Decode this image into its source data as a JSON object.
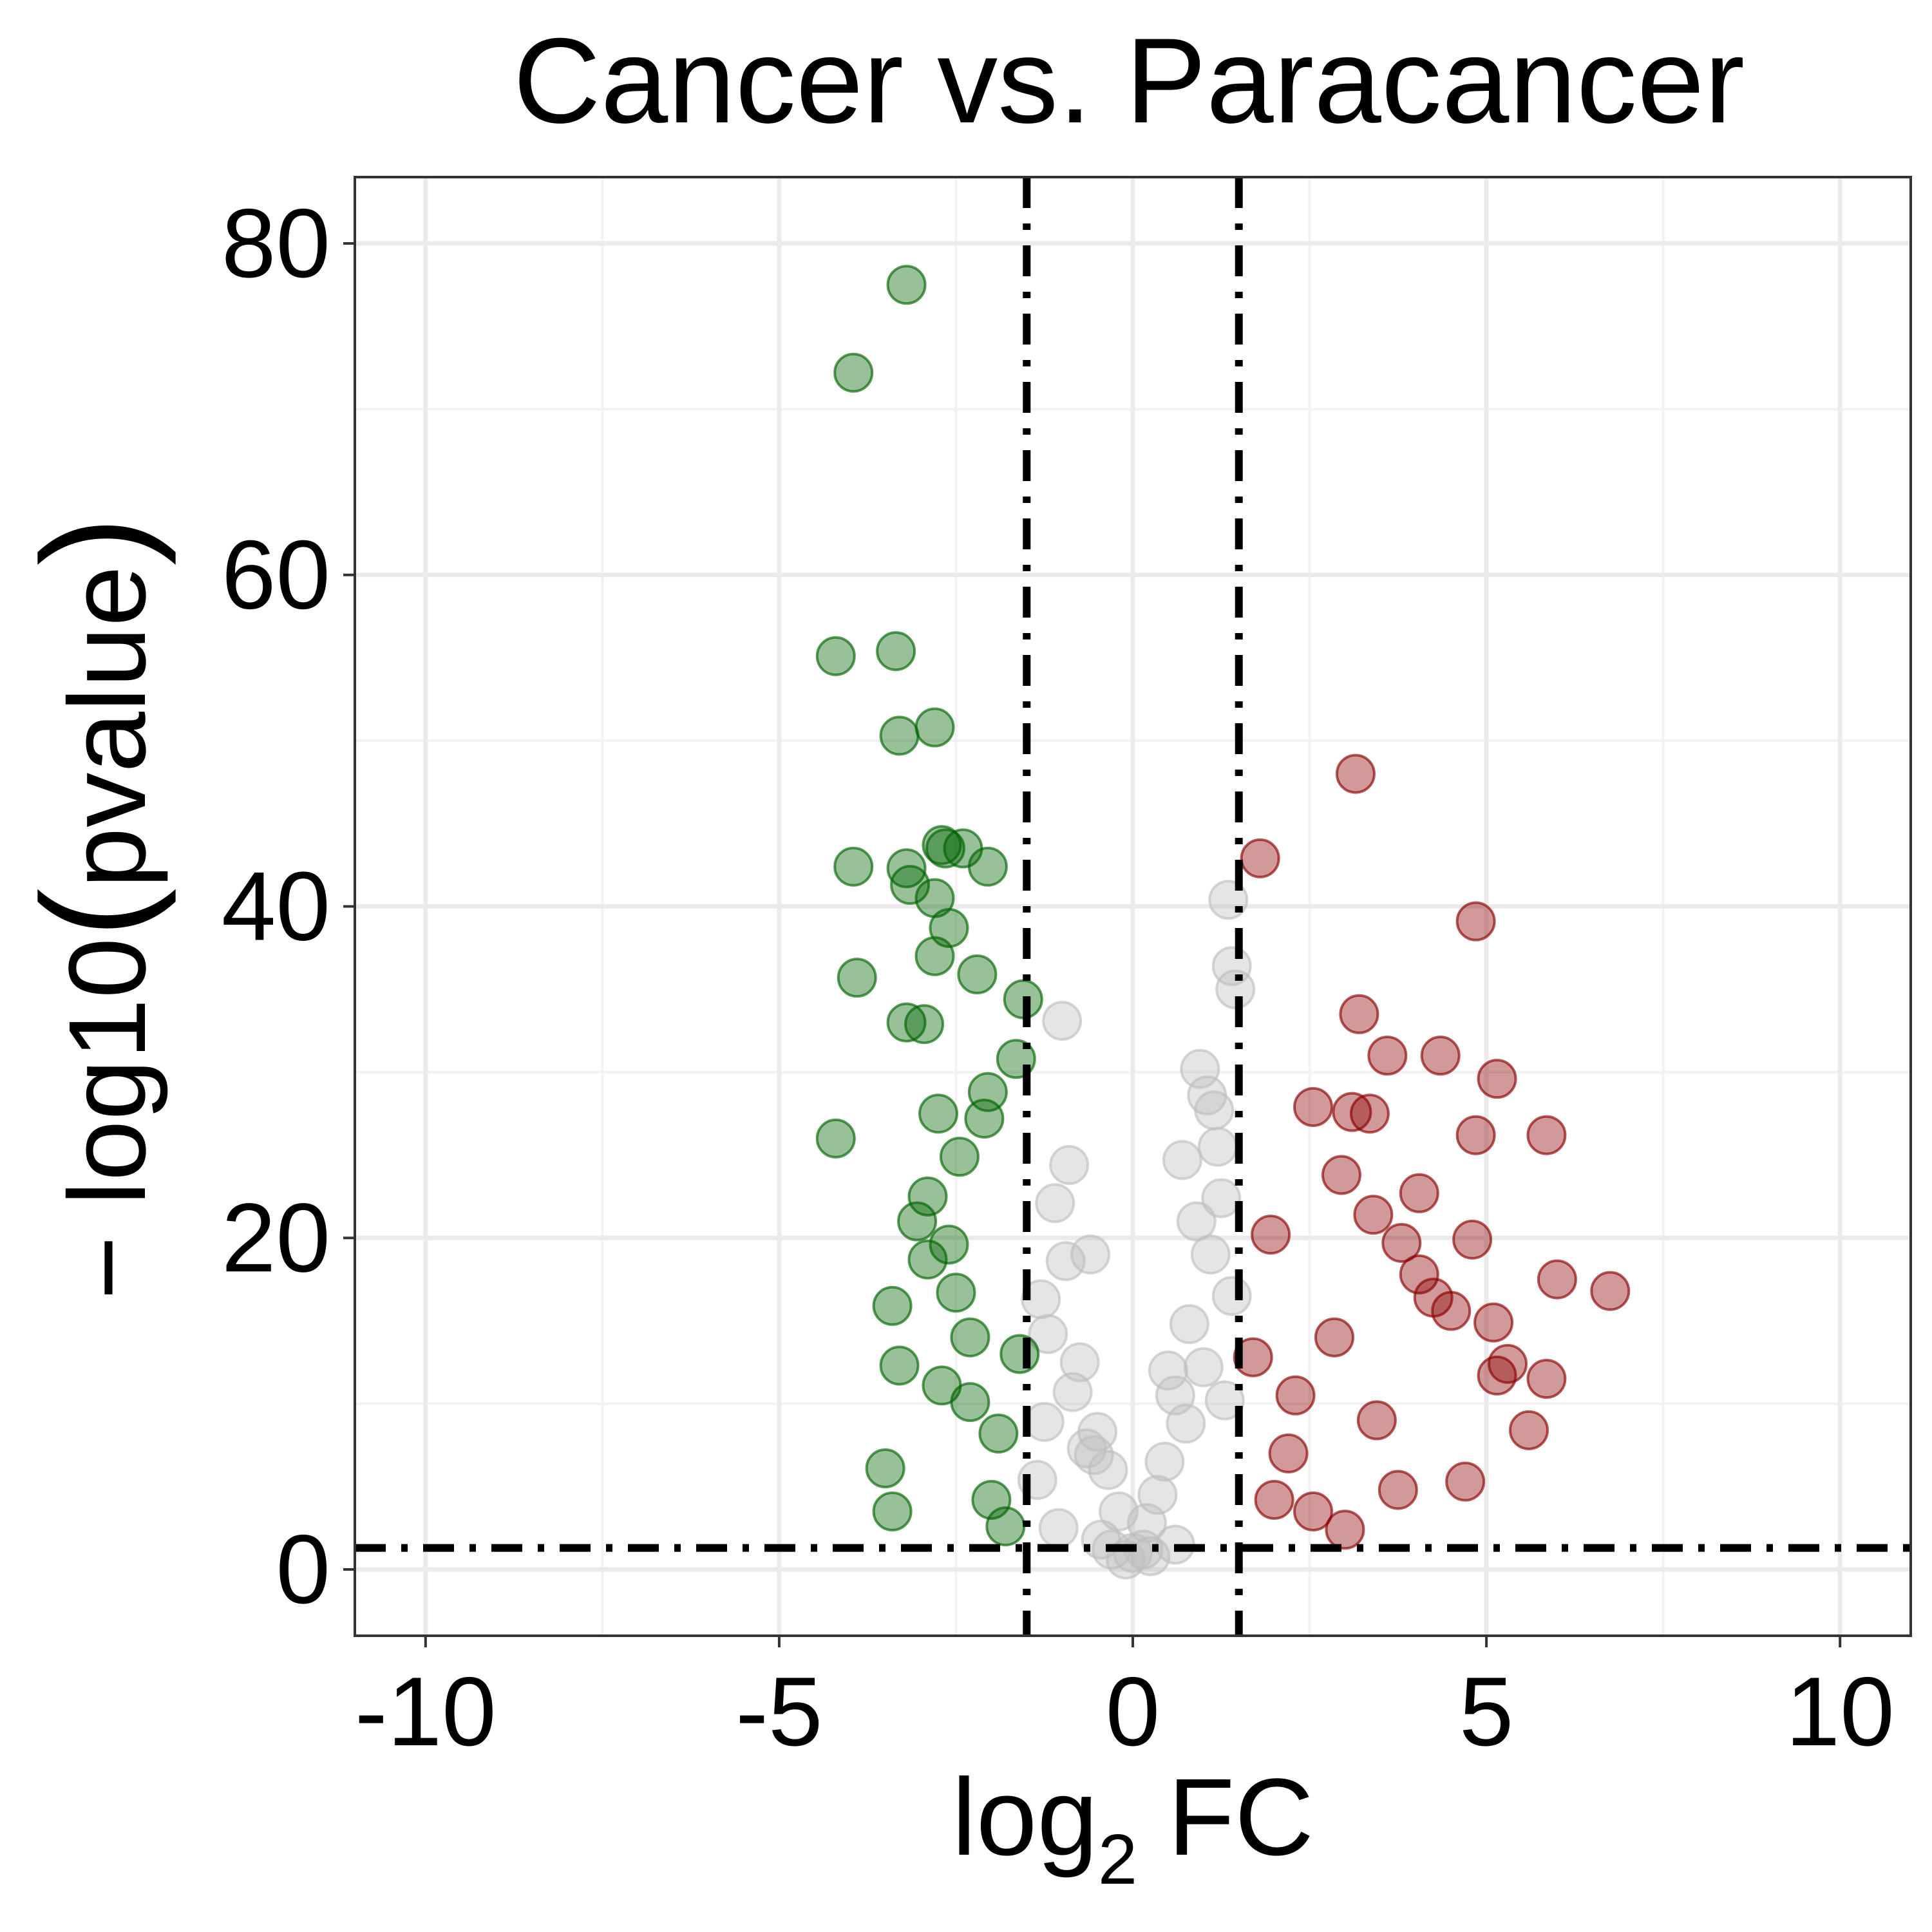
{
  "chart_data": {
    "type": "scatter",
    "title": "Cancer vs. Paracancer",
    "xlabel": {
      "base": "log",
      "subscript": "2",
      "suffix": " FC"
    },
    "ylabel": {
      "prefix": "− log10",
      "open": "(",
      "inner": "pvalue",
      "close": ")"
    },
    "xlim": [
      -11,
      11
    ],
    "ylim": [
      -4,
      84
    ],
    "x_ticks": [
      -10,
      -5,
      0,
      5,
      10
    ],
    "x_tick_labels": [
      "-10",
      "-5",
      "0",
      "5",
      "10"
    ],
    "y_ticks": [
      0,
      20,
      40,
      60,
      80
    ],
    "y_tick_labels": [
      "0",
      "20",
      "40",
      "60",
      "80"
    ],
    "grid": true,
    "legend": "none",
    "thresholds": {
      "fc_low": -1.5,
      "fc_high": 1.5,
      "neg_log10_p": 1.3
    },
    "colors": {
      "down": "#006400",
      "up": "#8b0000",
      "ns": "#bebebe",
      "point_alpha": 0.4
    },
    "series": [
      {
        "group": "down",
        "x": [
          -3.2,
          -3.95,
          -4.2,
          -3.35,
          -3.3,
          -2.8,
          -3.95,
          -3.2,
          -3.15,
          -2.65,
          -2.4,
          -2.05,
          -2.7,
          -3.9,
          -3.2,
          -2.8,
          -2.95,
          -2.2,
          -3.3,
          -2.8,
          -2.6,
          -1.55,
          -4.2,
          -2.9,
          -2.75,
          -2.05,
          -2.5,
          -1.9,
          -2.3,
          -1.6,
          -3.4,
          -3.05,
          -2.9,
          -2.3,
          -2.0,
          -1.8,
          -2.1,
          -2.7,
          -3.5,
          -3.4,
          -2.6,
          -2.45,
          -1.65
        ],
        "y": [
          77.5,
          72.2,
          55.1,
          55.4,
          50.3,
          50.8,
          42.4,
          42.3,
          41.3,
          43.5,
          43.5,
          42.4,
          43.7,
          35.7,
          33.0,
          37.0,
          32.9,
          35.9,
          12.3,
          40.5,
          38.7,
          34.4,
          26.0,
          22.5,
          27.5,
          28.8,
          16.7,
          8.2,
          10.1,
          13.0,
          15.9,
          21.0,
          18.7,
          14.0,
          4.2,
          2.6,
          27.2,
          11.1,
          6.1,
          3.5,
          19.6,
          24.9,
          30.8
        ]
      },
      {
        "group": "up",
        "x": [
          3.15,
          1.8,
          4.85,
          3.2,
          3.6,
          4.35,
          3.1,
          3.35,
          4.85,
          5.15,
          5.85,
          4.8,
          5.1,
          6.0,
          6.75,
          5.15,
          5.85,
          5.6,
          4.05,
          2.55,
          3.8,
          4.05,
          1.95,
          2.95,
          3.4,
          4.25,
          4.5,
          2.3,
          5.3,
          3.45,
          2.2,
          4.7,
          2.55,
          3.0,
          2.0,
          3.75,
          1.7,
          2.85
        ],
        "y": [
          48.0,
          42.9,
          39.1,
          33.5,
          31.0,
          31.0,
          27.6,
          27.5,
          26.2,
          29.6,
          26.2,
          19.9,
          14.9,
          17.5,
          16.8,
          11.7,
          11.5,
          8.4,
          22.7,
          27.9,
          19.7,
          17.8,
          20.2,
          23.8,
          21.4,
          16.4,
          15.6,
          10.5,
          12.4,
          9.0,
          7.0,
          5.3,
          3.5,
          2.4,
          4.2,
          4.8,
          12.8,
          14.0
        ]
      },
      {
        "group": "ns",
        "x": [
          1.35,
          1.4,
          1.45,
          0.95,
          1.05,
          1.15,
          0.7,
          -1.0,
          -0.9,
          -0.6,
          -1.3,
          -1.1,
          -0.75,
          -0.5,
          -0.35,
          -0.2,
          0.0,
          0.2,
          0.45,
          0.6,
          0.8,
          1.1,
          1.25,
          -1.2,
          -0.85,
          -0.55,
          0.35,
          0.75,
          1.0,
          -0.95,
          -0.65,
          0.5,
          0.9,
          1.2,
          -1.05,
          -0.3,
          0.25,
          0.6,
          -0.45,
          1.3,
          1.4,
          -1.35,
          -1.25,
          0.15,
          -0.1
        ],
        "y": [
          40.4,
          36.4,
          35.0,
          30.2,
          28.6,
          27.7,
          24.7,
          33.1,
          24.4,
          19.0,
          16.3,
          22.1,
          12.5,
          8.3,
          6.0,
          3.5,
          1.0,
          2.8,
          6.5,
          10.5,
          14.8,
          19.0,
          22.4,
          14.2,
          10.7,
          6.9,
          4.5,
          8.8,
          12.2,
          18.6,
          7.3,
          12.0,
          21.0,
          25.5,
          2.5,
          1.2,
          0.8,
          1.5,
          1.8,
          10.2,
          16.5,
          5.4,
          8.9,
          1.2,
          0.6
        ]
      }
    ]
  }
}
